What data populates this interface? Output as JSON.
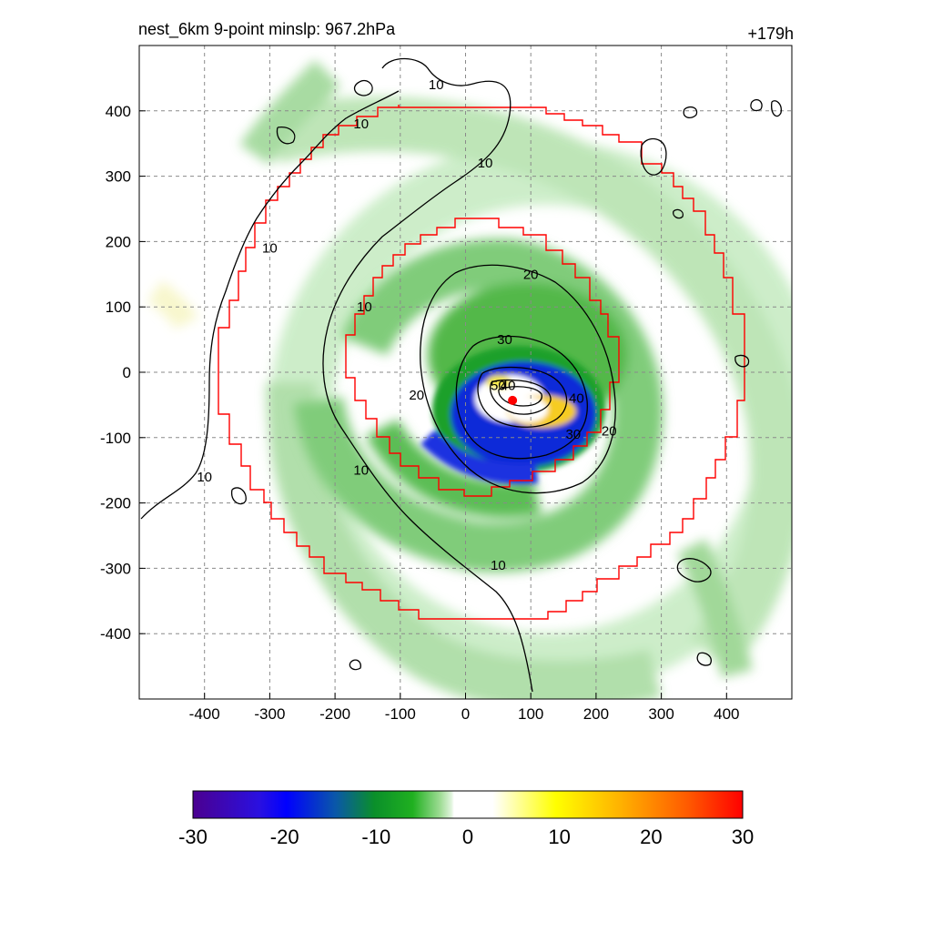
{
  "header": {
    "left": "nest_6km  9-point minslp: 967.2hPa",
    "right": "+179h"
  },
  "chart_data": {
    "type": "heatmap",
    "title": "nest_6km  9-point minslp: 967.2hPa",
    "forecast_hour": "+179h",
    "xlim": [
      -500,
      500
    ],
    "ylim": [
      -500,
      500
    ],
    "x_ticks": [
      -400,
      -300,
      -200,
      -100,
      0,
      100,
      200,
      300,
      400
    ],
    "y_ticks": [
      400,
      300,
      200,
      100,
      0,
      -100,
      -200,
      -300,
      -400
    ],
    "grid": true,
    "storm_center": {
      "x": 72,
      "y": -43,
      "color": "#ff0000"
    },
    "contour_labels": [
      {
        "text": "10",
        "x": -45,
        "y": 440
      },
      {
        "text": "10",
        "x": -160,
        "y": 380
      },
      {
        "text": "10",
        "x": 30,
        "y": 320
      },
      {
        "text": "10",
        "x": -300,
        "y": 190
      },
      {
        "text": "10",
        "x": -155,
        "y": 100
      },
      {
        "text": "10",
        "x": -400,
        "y": -160
      },
      {
        "text": "10",
        "x": -160,
        "y": -150
      },
      {
        "text": "10",
        "x": 50,
        "y": -295
      },
      {
        "text": "20",
        "x": 100,
        "y": 150
      },
      {
        "text": "20",
        "x": -75,
        "y": -35
      },
      {
        "text": "20",
        "x": 220,
        "y": -90
      },
      {
        "text": "30",
        "x": 60,
        "y": 50
      },
      {
        "text": "40",
        "x": 65,
        "y": -20
      },
      {
        "text": "50",
        "x": 50,
        "y": -20
      },
      {
        "text": "40",
        "x": 170,
        "y": -40
      },
      {
        "text": "30",
        "x": 165,
        "y": -95
      }
    ],
    "colorbar": {
      "ticks": [
        -30,
        -20,
        -10,
        0,
        10,
        20,
        30
      ],
      "range": [
        -30,
        30
      ]
    }
  }
}
